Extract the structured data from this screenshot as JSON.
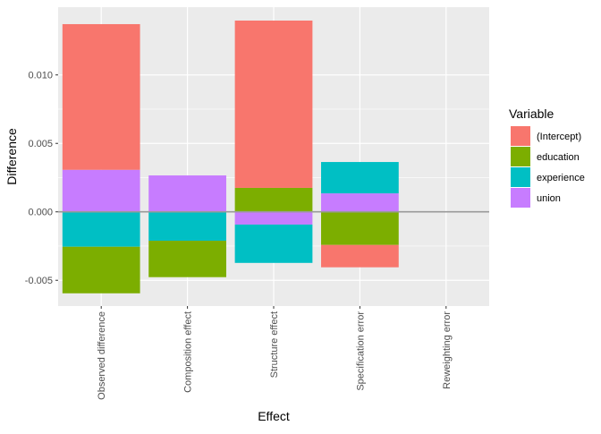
{
  "chart_data": {
    "type": "bar",
    "stacked": true,
    "categories": [
      "Observed difference",
      "Composition effect",
      "Structure effect",
      "Specification error",
      "Reweighting error"
    ],
    "series": [
      {
        "name": "(Intercept)",
        "color": "#F8766D",
        "values": [
          0.01064,
          0,
          0.01222,
          -0.00163,
          0
        ]
      },
      {
        "name": "education",
        "color": "#7CAE00",
        "values": [
          -0.0034,
          -0.00266,
          0.00175,
          -0.00242,
          0
        ]
      },
      {
        "name": "experience",
        "color": "#00BFC4",
        "values": [
          -0.00255,
          -0.00211,
          -0.0028,
          0.00229,
          0
        ]
      },
      {
        "name": "union",
        "color": "#C77CFF",
        "values": [
          0.00307,
          0.00266,
          -0.00093,
          0.00135,
          0
        ]
      }
    ],
    "xlabel": "Effect",
    "ylabel": "Difference",
    "yticks": [
      "-0.005",
      "0.000",
      "0.005",
      "0.010"
    ],
    "ytick_values": [
      -0.005,
      0,
      0.005,
      0.01
    ],
    "ylim": [
      -0.00688,
      0.01495
    ],
    "legend_title": "Variable",
    "legend_position": "right",
    "grid": true,
    "hline_at_zero": true
  }
}
